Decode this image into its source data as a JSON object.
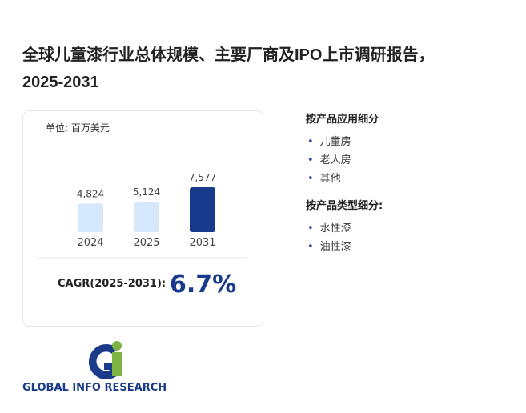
{
  "title": [
    "全球儿童漆行业总体规模、主要厂商及IPO上市调研报告，",
    "2025-2031"
  ],
  "chart_data": {
    "type": "bar",
    "unit_label": "单位: 百万美元",
    "categories": [
      "2024",
      "2025",
      "2031"
    ],
    "values": [
      4824,
      5124,
      7577
    ],
    "value_labels": [
      "4,824",
      "5,124",
      "7,577"
    ],
    "colors": [
      "#d6e8fb",
      "#d6e8fb",
      "#173a8c"
    ]
  },
  "cagr": {
    "label": "CAGR(2025-2031):",
    "value": "6.7%"
  },
  "segments": [
    {
      "heading": "按产品应用细分",
      "items": [
        "儿童房",
        "老人房",
        "其他"
      ]
    },
    {
      "heading": "按产品类型细分:",
      "items": [
        "水性漆",
        "油性漆"
      ]
    }
  ],
  "logo": {
    "text": "GLOBAL INFO RESEARCH"
  }
}
